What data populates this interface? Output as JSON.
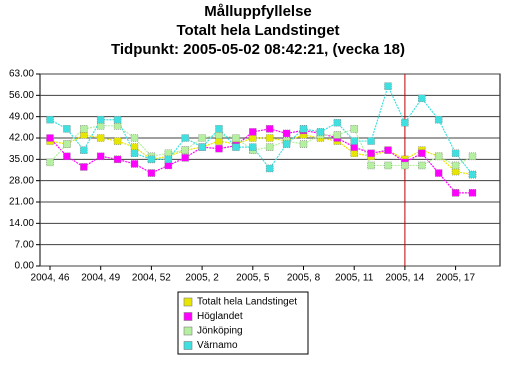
{
  "chart_data": {
    "type": "line",
    "title": "Målluppfyllelse",
    "subtitle": "Totalt hela Landstinget",
    "caption": "Tidpunkt: 2005-05-02  08:42:21, (vecka 18)",
    "categories": [
      "2004, 46",
      null,
      null,
      "2004, 49",
      null,
      null,
      "2004, 52",
      null,
      null,
      "2005, 2",
      null,
      null,
      "2005, 5",
      null,
      null,
      "2005, 8",
      null,
      null,
      "2005, 11",
      null,
      null,
      "2005, 14",
      null,
      null,
      "2005, 17",
      null
    ],
    "series": [
      {
        "name": "Totalt hela Landstinget",
        "color": "#e6e600",
        "values": [
          41,
          40,
          43,
          42,
          41,
          39,
          35,
          36,
          38,
          39,
          41,
          40,
          42,
          42,
          41,
          43,
          42,
          41,
          37,
          36,
          38,
          35,
          38,
          36,
          31,
          30
        ]
      },
      {
        "name": "Höglandet",
        "color": "#ff00ff",
        "values": [
          42,
          36,
          32.5,
          36,
          35,
          33.5,
          30.5,
          33,
          35.5,
          39,
          38.5,
          39.5,
          44,
          45,
          43.5,
          44.5,
          43.5,
          42,
          39,
          37,
          38,
          34,
          37,
          30.5,
          24,
          24
        ]
      },
      {
        "name": "Jönköping",
        "color": "#b4f0a0",
        "values": [
          34,
          40,
          45,
          46,
          46,
          42,
          36,
          37,
          38,
          42,
          43,
          42,
          38,
          39,
          41,
          40,
          43,
          43,
          45,
          33,
          33,
          33,
          33,
          36,
          33,
          36
        ]
      },
      {
        "name": "Värnamo",
        "color": "#40e0e0",
        "values": [
          48,
          45,
          38,
          48,
          48,
          37,
          35,
          35,
          42,
          39,
          45,
          39,
          39,
          32,
          40,
          45,
          44,
          47,
          41,
          41,
          59,
          47,
          55,
          48,
          37,
          30
        ]
      }
    ],
    "ylim": [
      0,
      63
    ],
    "yticks": [
      {
        "value": 0,
        "label": "0.00"
      },
      {
        "value": 7,
        "label": "7.00"
      },
      {
        "value": 14,
        "label": "14.00"
      },
      {
        "value": 21,
        "label": "21.00"
      },
      {
        "value": 28,
        "label": "28.00"
      },
      {
        "value": 35,
        "label": "35.00"
      },
      {
        "value": 42,
        "label": "42.00"
      },
      {
        "value": 49,
        "label": "49.00"
      },
      {
        "value": 56,
        "label": "56.00"
      },
      {
        "value": 63,
        "label": "63.00"
      }
    ],
    "grid": true,
    "highlight_index": 21,
    "highlight_color": "#c00000",
    "legend": "bottom"
  }
}
